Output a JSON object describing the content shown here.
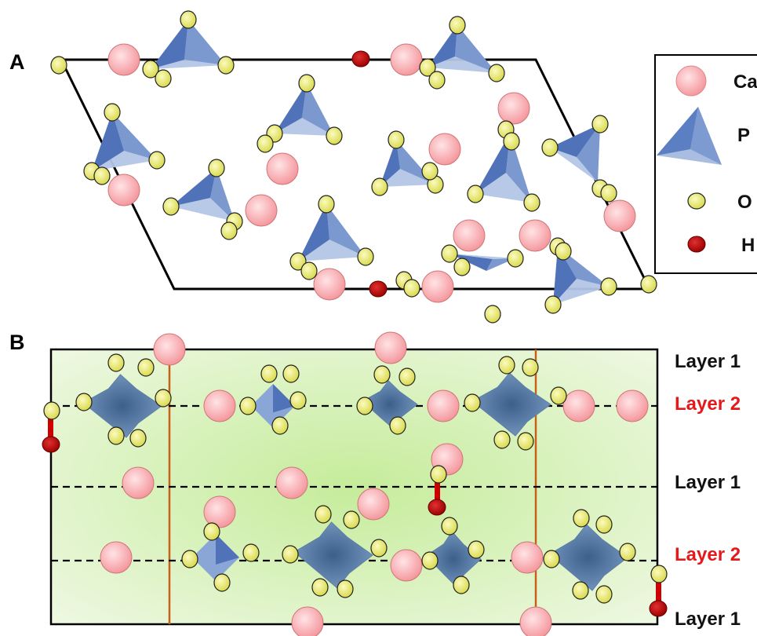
{
  "panels": {
    "a_label": "A",
    "b_label": "B"
  },
  "legend": {
    "items": [
      {
        "label": "Ca",
        "icon": "calcium-atom-icon"
      },
      {
        "label": "P",
        "icon": "phosphate-tetrahedron-icon"
      },
      {
        "label": "O",
        "icon": "oxygen-atom-icon"
      },
      {
        "label": "H",
        "icon": "hydrogen-atom-icon"
      }
    ]
  },
  "layers": [
    {
      "label": "Layer 1",
      "color": "#111111"
    },
    {
      "label": "Layer 2",
      "color": "#e31a1c"
    },
    {
      "label": "Layer 1",
      "color": "#111111"
    },
    {
      "label": "Layer 2",
      "color": "#e31a1c"
    },
    {
      "label": "Layer 1",
      "color": "#111111"
    }
  ],
  "colors": {
    "calcium": "#f7a9ad",
    "phosphorus": "#4a6fb5",
    "oxygen": "#e4e46a",
    "hydrogen": "#c00000",
    "bond_line": "#c8601a",
    "background_panel_b": "#d8f0b8"
  }
}
